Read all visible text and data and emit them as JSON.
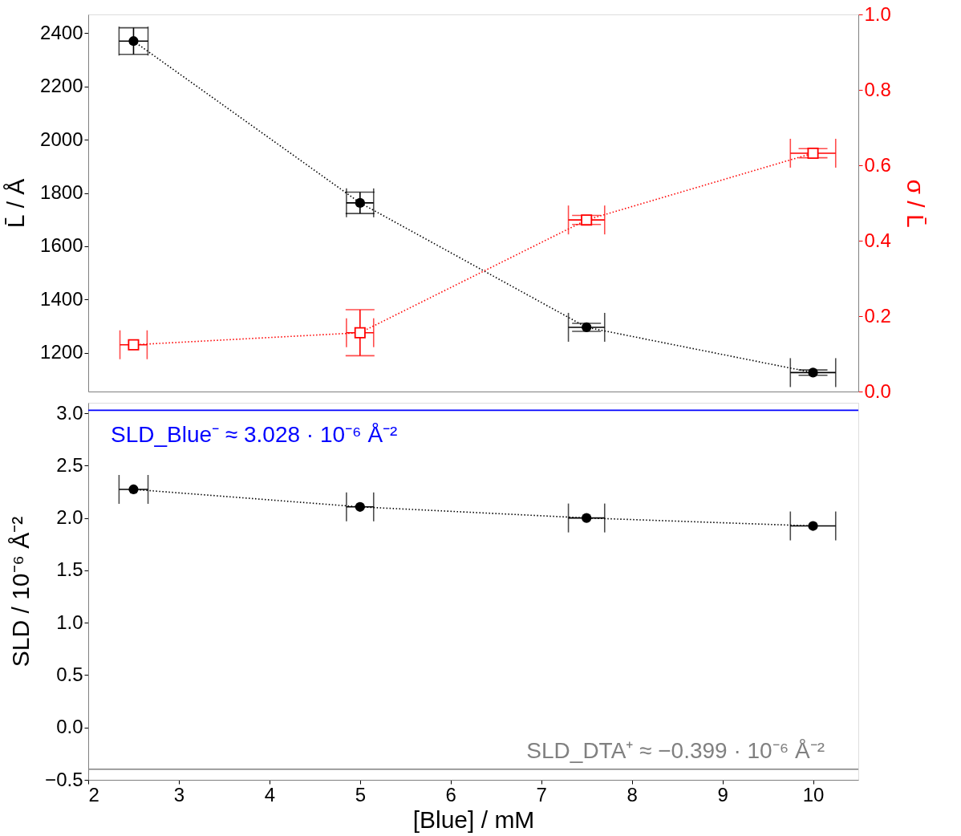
{
  "chart_data": [
    {
      "type": "line",
      "ylabel": "L̄ / Å",
      "y2label": "σ / L̄",
      "xlim": [
        2,
        10.5
      ],
      "ylim": [
        1055,
        2470
      ],
      "yticks": [
        1200,
        1400,
        1600,
        1800,
        2000,
        2200,
        2400
      ],
      "y2lim": [
        0.0,
        1.0
      ],
      "y2ticks": [
        {
          "value": 0,
          "label": "0.0"
        },
        0.2,
        0.4,
        0.6,
        0.8,
        {
          "value": 1,
          "label": "1.0"
        }
      ],
      "tick_labels": "y",
      "grid": false,
      "line_style": "dotted",
      "series": [
        {
          "color": "#000000",
          "marker": "circle",
          "x": [
            2.5,
            5.0,
            7.5,
            10.0
          ],
          "values": [
            2370,
            1763,
            1296,
            1126
          ],
          "errors": [
            50,
            40,
            15,
            10
          ],
          "xerrors": [
            0.16,
            0.15,
            0.2,
            0.25
          ]
        },
        {
          "color": "#ff0000",
          "marker": "square",
          "axis": "y2",
          "x": [
            2.5,
            5.0,
            7.5,
            10.0
          ],
          "values": [
            0.124,
            0.156,
            0.455,
            0.632
          ],
          "errors": [
            null,
            0.061,
            0.012,
            0.012
          ],
          "xerrors": [
            0.15,
            0.15,
            0.2,
            0.25
          ]
        }
      ]
    },
    {
      "type": "line",
      "xlabel": "[Blue] / mM",
      "ylabel": "SLD / 10⁻⁶ Å⁻²",
      "xlim": [
        2,
        10.5
      ],
      "xticks": [
        2,
        3,
        4,
        5,
        6,
        7,
        8,
        9,
        10
      ],
      "ylim": [
        -0.5,
        3.1
      ],
      "yticks": [
        -0.5,
        {
          "value": 0,
          "label": "0.0"
        },
        0.5,
        {
          "value": 1,
          "label": "1.0"
        },
        1.5,
        {
          "value": 2,
          "label": "2.0"
        },
        2.5,
        {
          "value": 3,
          "label": "3.0"
        }
      ],
      "grid": false,
      "line_style": "dotted",
      "series": [
        {
          "color": "#000000",
          "marker": "circle",
          "x": [
            2.5,
            5.0,
            7.5,
            10.0
          ],
          "values": [
            2.273,
            2.106,
            2.0,
            1.924
          ],
          "xerrors": [
            0.16,
            0.15,
            0.2,
            0.25
          ]
        }
      ],
      "ref_lines": [
        {
          "axis": "y",
          "value": 3.028,
          "label": "SLD_Blue⁻ ≈ 3.028 · 10⁻⁶ Å⁻²",
          "color": "#0000ff"
        },
        {
          "axis": "y",
          "value": -0.399,
          "label": "SLD_DTA⁺ ≈ −0.399 · 10⁻⁶ Å⁻²",
          "color": "#808080"
        }
      ]
    }
  ]
}
